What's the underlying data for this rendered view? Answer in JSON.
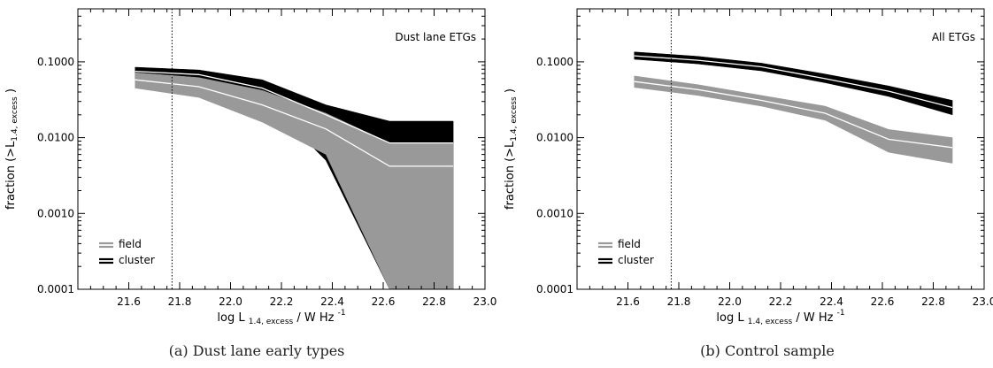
{
  "chart_data": [
    {
      "type": "area",
      "title": "Dust lane ETGs",
      "caption": "(a) Dust lane early types",
      "xlabel": "log L 1.4, excess / W Hz -1",
      "xlabel_parts": {
        "main": "log L",
        "sub": "1.4, excess",
        "mid": "/ W Hz",
        "sup": "-1"
      },
      "ylabel": "fraction (>L 1.4, excess )",
      "ylabel_parts": {
        "main": "fraction (>L",
        "sub": "1.4, excess",
        "end": ")"
      },
      "xlim": [
        21.4,
        23.0
      ],
      "ylim": [
        0.0001,
        0.5
      ],
      "yscale": "log",
      "x_ticks": [
        "21.6",
        "21.8",
        "22.0",
        "22.2",
        "22.4",
        "22.6",
        "22.8",
        "23.0"
      ],
      "y_ticks": [
        "0.1000",
        "0.0100",
        "0.0010",
        "0.0001"
      ],
      "reference_line_x": 21.77,
      "legend_position": "bottom-left",
      "x": [
        21.625,
        21.875,
        22.125,
        22.375,
        22.625,
        22.875
      ],
      "series": [
        {
          "name": "cluster",
          "color": "#000000",
          "median_color": "#ffffff",
          "lower": [
            0.06,
            0.055,
            0.035,
            0.005,
            0.0001,
            0.0001
          ],
          "median": [
            0.075,
            0.068,
            0.045,
            0.02,
            0.0085,
            0.0085
          ],
          "upper": [
            0.085,
            0.078,
            0.058,
            0.027,
            0.0165,
            0.0165
          ]
        },
        {
          "name": "field",
          "color": "#999999",
          "median_color": "#ffffff",
          "lower": [
            0.045,
            0.034,
            0.016,
            0.006,
            0.0001,
            0.0001
          ],
          "median": [
            0.058,
            0.047,
            0.027,
            0.013,
            0.0042,
            0.0042
          ],
          "upper": [
            0.072,
            0.062,
            0.042,
            0.021,
            0.0085,
            0.0085
          ]
        }
      ]
    },
    {
      "type": "area",
      "title": "All ETGs",
      "caption": "(b) Control sample",
      "xlabel": "log L 1.4, excess / W Hz -1",
      "xlabel_parts": {
        "main": "log L",
        "sub": "1.4, excess",
        "mid": "/ W Hz",
        "sup": "-1"
      },
      "ylabel": "fraction (>L 1.4, excess )",
      "ylabel_parts": {
        "main": "fraction (>L",
        "sub": "1.4, excess",
        "end": ")"
      },
      "xlim": [
        21.4,
        23.0
      ],
      "ylim": [
        0.0001,
        0.5
      ],
      "yscale": "log",
      "x_ticks": [
        "21.6",
        "21.8",
        "22.0",
        "22.2",
        "22.4",
        "22.6",
        "22.8",
        "23.0"
      ],
      "y_ticks": [
        "0.1000",
        "0.0100",
        "0.0010",
        "0.0001"
      ],
      "reference_line_x": 21.77,
      "legend_position": "bottom-left",
      "x": [
        21.625,
        21.875,
        22.125,
        22.375,
        22.625,
        22.875
      ],
      "series": [
        {
          "name": "cluster",
          "color": "#000000",
          "median_color": "#ffffff",
          "lower": [
            0.108,
            0.094,
            0.076,
            0.053,
            0.035,
            0.02
          ],
          "median": [
            0.12,
            0.105,
            0.086,
            0.06,
            0.041,
            0.025
          ],
          "upper": [
            0.135,
            0.118,
            0.096,
            0.069,
            0.048,
            0.031
          ]
        },
        {
          "name": "field",
          "color": "#999999",
          "median_color": "#ffffff",
          "lower": [
            0.046,
            0.036,
            0.026,
            0.017,
            0.0064,
            0.0046
          ],
          "median": [
            0.055,
            0.043,
            0.031,
            0.021,
            0.0095,
            0.0074
          ],
          "upper": [
            0.065,
            0.05,
            0.036,
            0.026,
            0.0128,
            0.01
          ]
        }
      ]
    }
  ]
}
